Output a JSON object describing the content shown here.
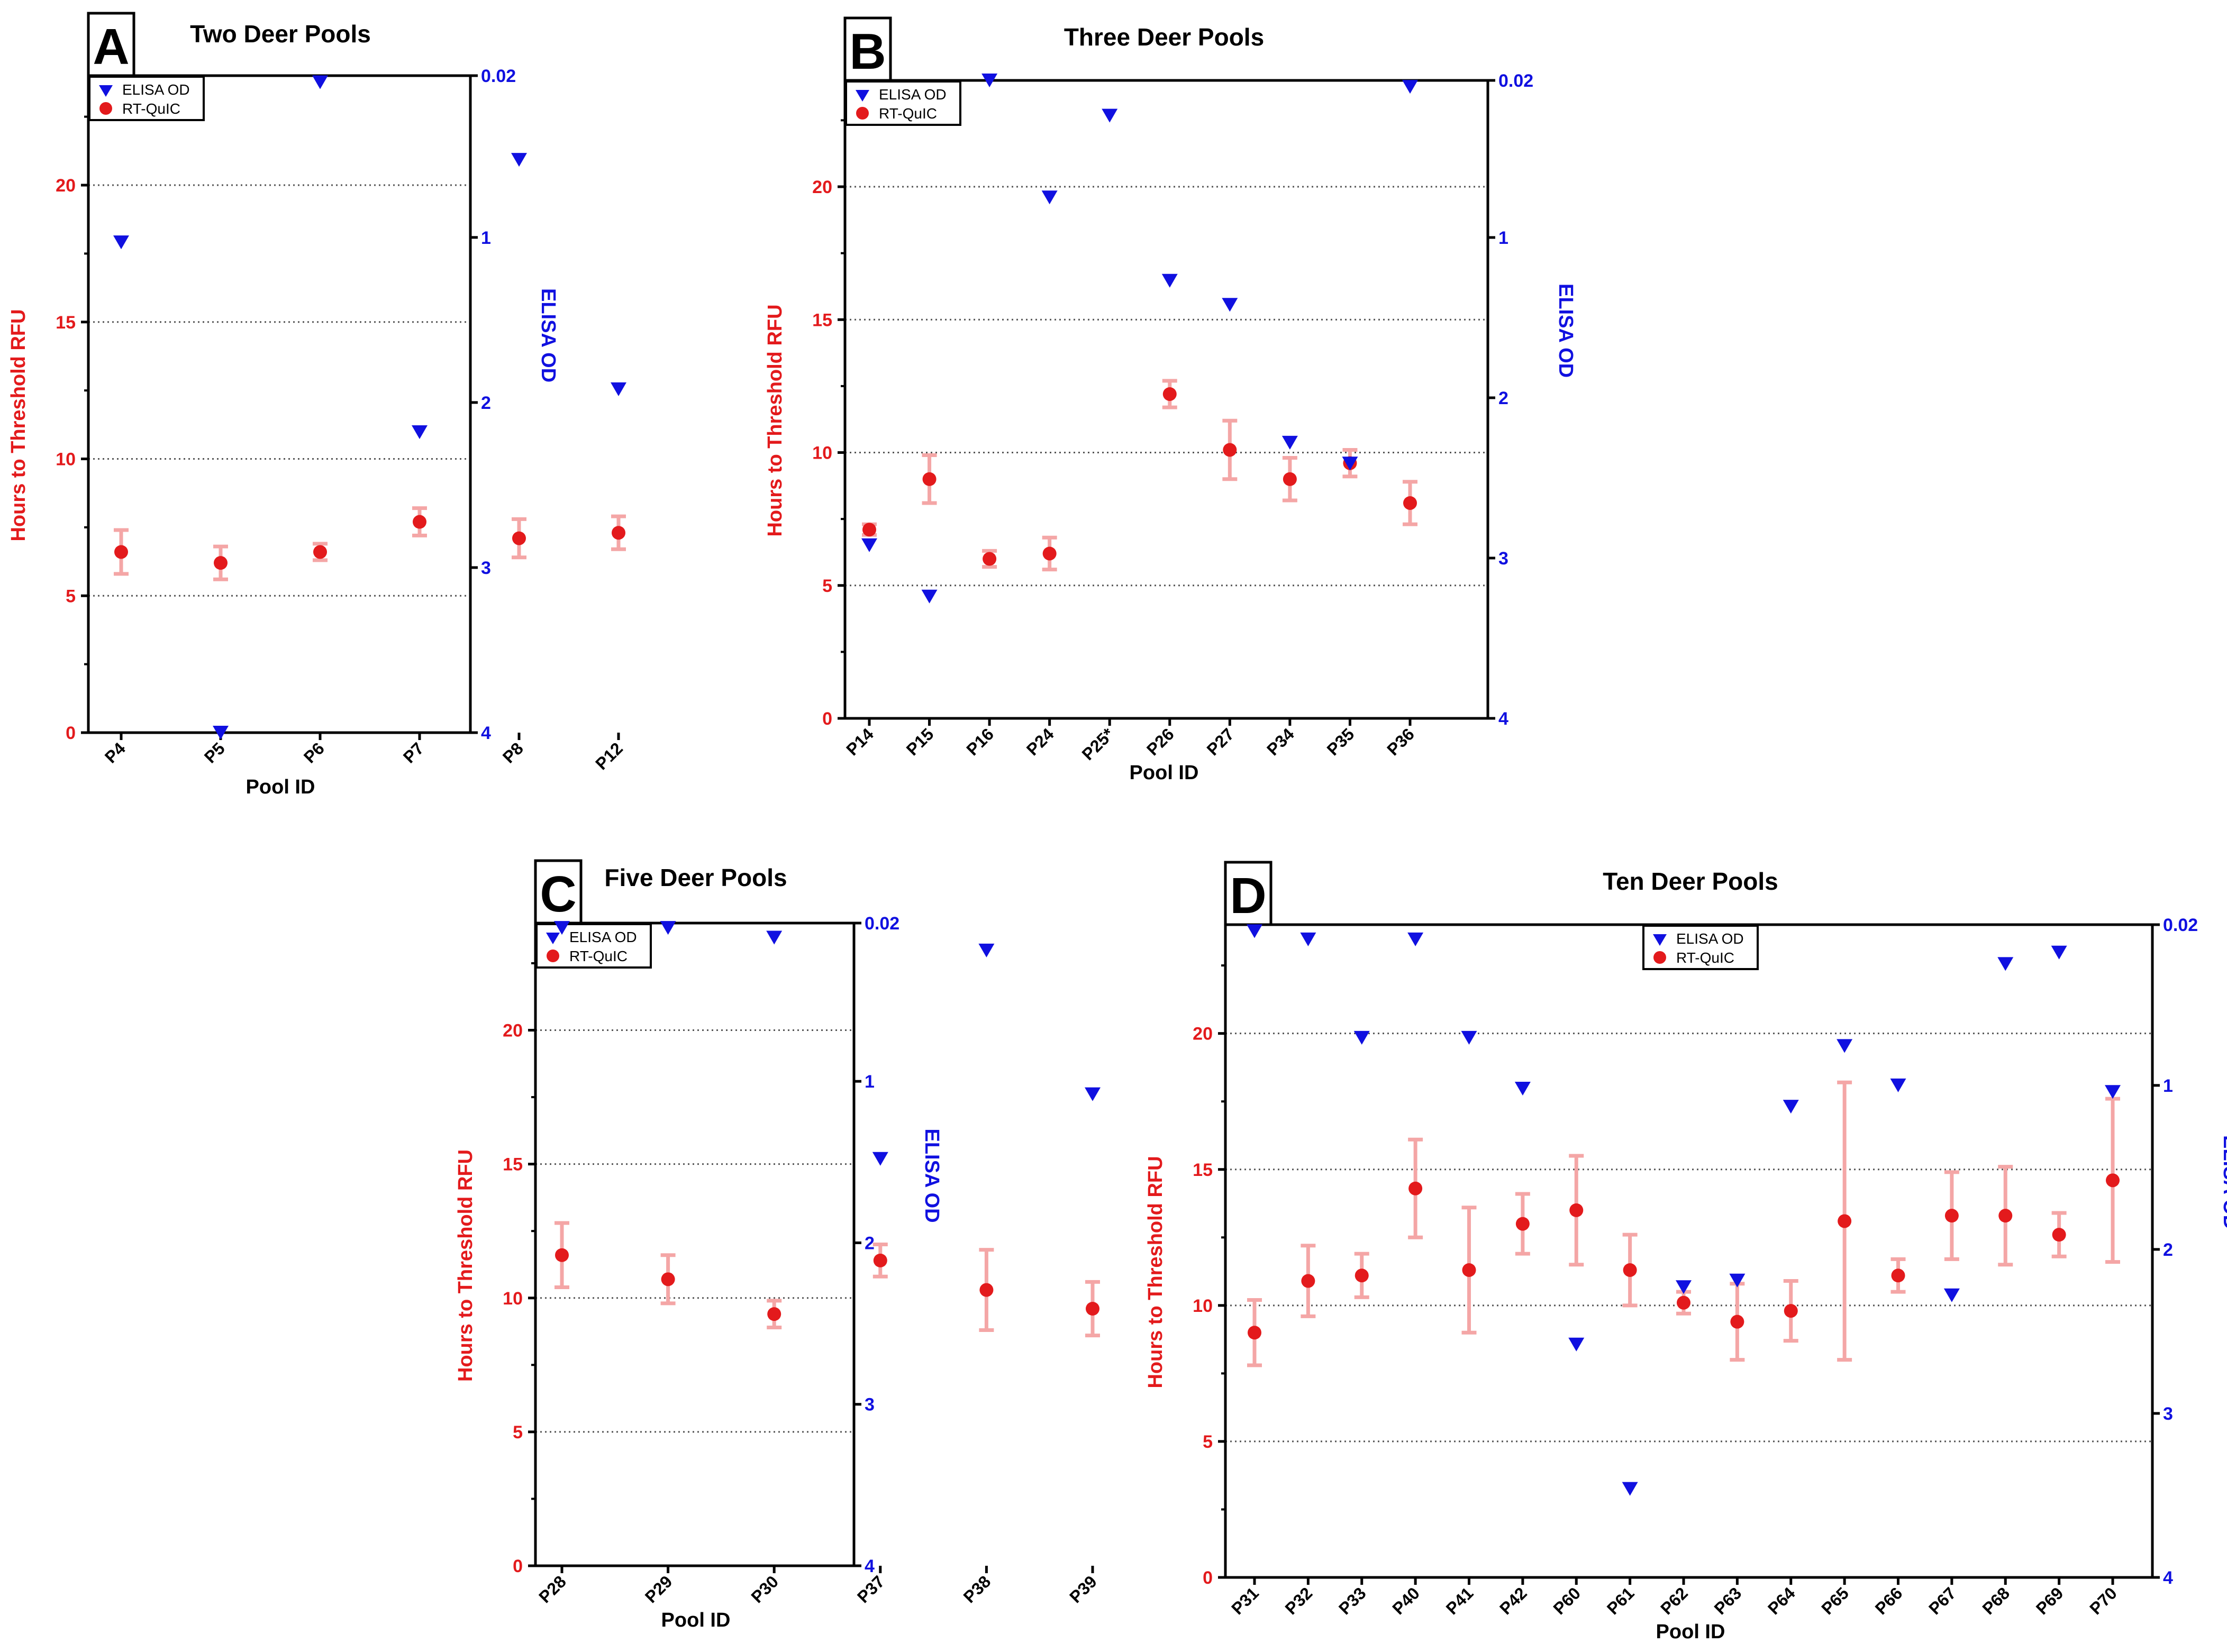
{
  "colors": {
    "rtquic": "#e31a1c",
    "rtquic_err": "#f4a6a6",
    "elisa": "#1010e0",
    "axis": "#000000",
    "grid": "#555555"
  },
  "chart_data": [
    {
      "type": "scatter",
      "panel_letter": "A",
      "title": "Two Deer Pools",
      "xlabel": "Pool ID",
      "ylabel_left": "Hours to Threshold RFU",
      "ylabel_right": "ELISA OD",
      "ylim_left": [
        0,
        24
      ],
      "yticks_left": [
        "0",
        "5",
        "10",
        "15",
        "20"
      ],
      "yticks_left_values": [
        0,
        5,
        10,
        15,
        20
      ],
      "grid_lines_left": [
        5,
        10,
        15,
        20
      ],
      "ylim_right": [
        4,
        0.02
      ],
      "yticks_right": [
        "0.02",
        "1",
        "2",
        "3",
        "4"
      ],
      "yticks_right_values": [
        0.02,
        1,
        2,
        3,
        4
      ],
      "legend": [
        "ELISA OD",
        "RT-QuIC"
      ],
      "legend_position": "top-left",
      "categories": [
        "P4",
        "P5",
        "P6",
        "P7",
        "P8",
        "P12"
      ],
      "rtquic_mean": [
        6.6,
        6.2,
        6.6,
        7.7,
        7.1,
        7.3
      ],
      "rtquic_err": [
        0.8,
        0.6,
        0.3,
        0.5,
        0.7,
        0.6
      ],
      "elisa_od": [
        1.03,
        4.0,
        0.06,
        2.18,
        0.53,
        1.92
      ]
    },
    {
      "type": "scatter",
      "panel_letter": "B",
      "title": "Three Deer Pools",
      "xlabel": "Pool ID",
      "ylabel_left": "Hours to Threshold RFU",
      "ylabel_right": "ELISA OD",
      "ylim_left": [
        0,
        24
      ],
      "yticks_left": [
        "0",
        "5",
        "10",
        "15",
        "20"
      ],
      "yticks_left_values": [
        0,
        5,
        10,
        15,
        20
      ],
      "grid_lines_left": [
        5,
        10,
        15,
        20
      ],
      "ylim_right": [
        4,
        0.02
      ],
      "yticks_right": [
        "0.02",
        "1",
        "2",
        "3",
        "4"
      ],
      "yticks_right_values": [
        0.02,
        1,
        2,
        3,
        4
      ],
      "legend": [
        "ELISA OD",
        "RT-QuIC"
      ],
      "legend_position": "top-left",
      "categories": [
        "P14",
        "P15",
        "P16",
        "P24",
        "P25*",
        "P26",
        "P27",
        "P34",
        "P35",
        "P36"
      ],
      "rtquic_mean": [
        7.1,
        9.0,
        6.0,
        6.2,
        null,
        12.2,
        10.1,
        9.0,
        9.6,
        8.1
      ],
      "rtquic_err": [
        0.2,
        0.9,
        0.3,
        0.6,
        null,
        0.5,
        1.1,
        0.8,
        0.5,
        0.8
      ],
      "elisa_od": [
        2.92,
        3.24,
        0.02,
        0.75,
        0.24,
        1.27,
        1.42,
        2.28,
        2.41,
        0.06
      ]
    },
    {
      "type": "scatter",
      "panel_letter": "C",
      "title": "Five Deer Pools",
      "xlabel": "Pool ID",
      "ylabel_left": "Hours to Threshold RFU",
      "ylabel_right": "ELISA OD",
      "ylim_left": [
        0,
        24
      ],
      "yticks_left": [
        "0",
        "5",
        "10",
        "15",
        "20"
      ],
      "yticks_left_values": [
        0,
        5,
        10,
        15,
        20
      ],
      "grid_lines_left": [
        5,
        10,
        15,
        20
      ],
      "ylim_right": [
        4,
        0.02
      ],
      "yticks_right": [
        "0.02",
        "1",
        "2",
        "3",
        "4"
      ],
      "yticks_right_values": [
        0.02,
        1,
        2,
        3,
        4
      ],
      "legend": [
        "ELISA OD",
        "RT-QuIC"
      ],
      "legend_position": "top-left",
      "categories": [
        "P28",
        "P29",
        "P30",
        "P37",
        "P38",
        "P39"
      ],
      "rtquic_mean": [
        11.6,
        10.7,
        9.4,
        11.4,
        10.3,
        9.6
      ],
      "rtquic_err": [
        1.2,
        0.9,
        0.5,
        0.6,
        1.5,
        1.0
      ],
      "elisa_od": [
        0.05,
        0.05,
        0.11,
        1.48,
        0.19,
        1.08
      ]
    },
    {
      "type": "scatter",
      "panel_letter": "D",
      "title": "Ten Deer Pools",
      "xlabel": "Pool ID",
      "ylabel_left": "Hours to Threshold RFU",
      "ylabel_right": "ELISA OD",
      "ylim_left": [
        0,
        24
      ],
      "yticks_left": [
        "0",
        "5",
        "10",
        "15",
        "20"
      ],
      "yticks_left_values": [
        0,
        5,
        10,
        15,
        20
      ],
      "grid_lines_left": [
        5,
        10,
        15,
        20
      ],
      "ylim_right": [
        4,
        0.02
      ],
      "yticks_right": [
        "0.02",
        "1",
        "2",
        "3",
        "4"
      ],
      "yticks_right_values": [
        0.02,
        1,
        2,
        3,
        4
      ],
      "legend": [
        "ELISA OD",
        "RT-QuIC"
      ],
      "legend_position": "top-center",
      "categories": [
        "P31",
        "P32",
        "P33",
        "P40",
        "P41",
        "P42",
        "P60",
        "P61",
        "P62",
        "P63",
        "P64",
        "P65",
        "P66",
        "P67",
        "P68",
        "P69",
        "P70"
      ],
      "rtquic_mean": [
        9.0,
        10.9,
        11.1,
        14.3,
        11.3,
        13.0,
        13.5,
        11.3,
        10.1,
        9.4,
        9.8,
        13.1,
        11.1,
        13.3,
        13.3,
        12.6,
        14.6
      ],
      "rtquic_err": [
        1.2,
        1.3,
        0.8,
        1.8,
        2.3,
        1.1,
        2.0,
        1.3,
        0.4,
        1.4,
        1.1,
        5.1,
        0.6,
        1.6,
        1.8,
        0.8,
        3.0
      ],
      "elisa_od": [
        0.06,
        0.11,
        0.71,
        0.11,
        0.71,
        1.02,
        2.58,
        3.46,
        2.23,
        2.19,
        1.13,
        0.76,
        1.0,
        2.28,
        0.26,
        0.19,
        1.04
      ]
    }
  ]
}
